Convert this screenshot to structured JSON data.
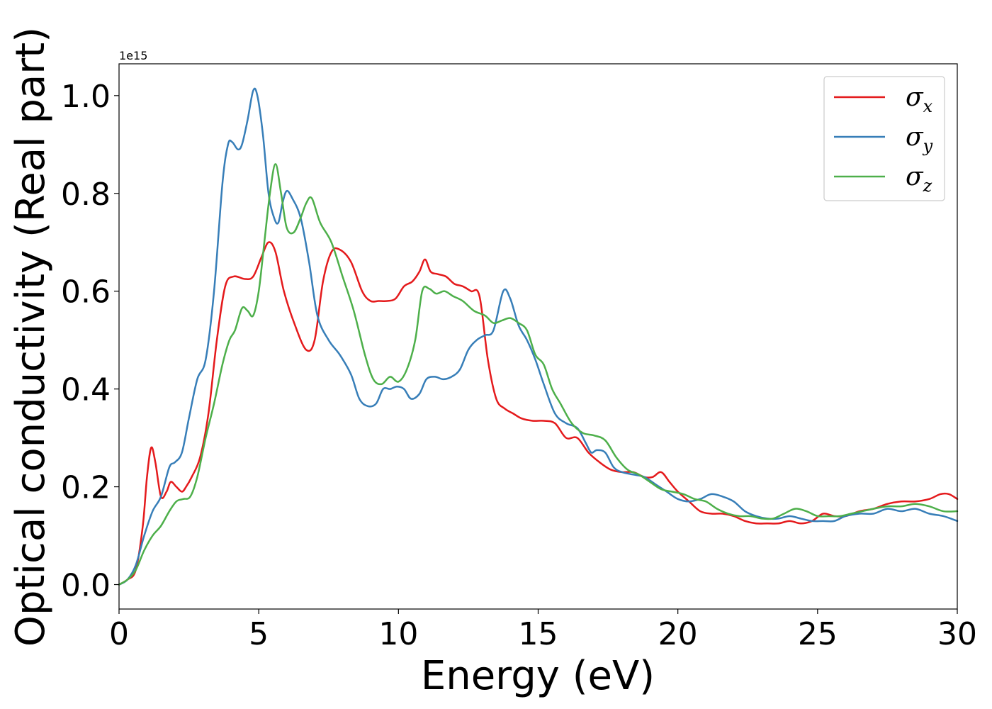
{
  "chart_data": {
    "type": "line",
    "xlabel": "Energy (eV)",
    "ylabel": "Optical conductivity (Real part)",
    "y_offset_label": "1e15",
    "xlim": [
      0,
      30
    ],
    "ylim": [
      -0.05,
      1.065
    ],
    "x_ticks": [
      0,
      5,
      10,
      15,
      20,
      25,
      30
    ],
    "x_tick_labels": [
      "0",
      "5",
      "10",
      "15",
      "20",
      "25",
      "30"
    ],
    "y_ticks": [
      0.0,
      0.2,
      0.4,
      0.6,
      0.8,
      1.0
    ],
    "y_tick_labels": [
      "0.0",
      "0.2",
      "0.4",
      "0.6",
      "0.8",
      "1.0"
    ],
    "grid": false,
    "legend_position": "top-right",
    "series": [
      {
        "name": "σx",
        "symbol": "σ",
        "subscript": "x",
        "color": "#e41a1c",
        "x": [
          0,
          0.3,
          0.6,
          0.85,
          1.0,
          1.15,
          1.3,
          1.5,
          1.7,
          1.85,
          2.05,
          2.25,
          2.4,
          2.6,
          2.9,
          3.2,
          3.5,
          3.8,
          4.1,
          4.5,
          4.8,
          5.1,
          5.35,
          5.6,
          5.9,
          6.3,
          6.7,
          7.0,
          7.3,
          7.6,
          7.9,
          8.3,
          8.7,
          9.0,
          9.3,
          9.6,
          9.9,
          10.2,
          10.5,
          10.75,
          10.95,
          11.15,
          11.4,
          11.7,
          12.0,
          12.3,
          12.6,
          12.9,
          13.2,
          13.5,
          13.8,
          14.1,
          14.4,
          14.8,
          15.2,
          15.6,
          16.0,
          16.4,
          16.8,
          17.2,
          17.6,
          18.0,
          18.4,
          18.8,
          19.1,
          19.4,
          19.7,
          20.0,
          20.4,
          20.8,
          21.2,
          21.6,
          22.0,
          22.4,
          22.8,
          23.2,
          23.6,
          24.0,
          24.4,
          24.8,
          25.2,
          25.6,
          26.0,
          26.5,
          27.0,
          27.5,
          28.0,
          28.5,
          29.0,
          29.4,
          29.7,
          30.0
        ],
        "y": [
          0.0,
          0.01,
          0.03,
          0.12,
          0.22,
          0.28,
          0.25,
          0.18,
          0.19,
          0.21,
          0.2,
          0.19,
          0.2,
          0.22,
          0.26,
          0.35,
          0.5,
          0.61,
          0.63,
          0.625,
          0.63,
          0.67,
          0.7,
          0.68,
          0.6,
          0.53,
          0.48,
          0.5,
          0.62,
          0.68,
          0.685,
          0.66,
          0.6,
          0.58,
          0.58,
          0.58,
          0.585,
          0.61,
          0.62,
          0.64,
          0.665,
          0.64,
          0.635,
          0.63,
          0.615,
          0.61,
          0.6,
          0.59,
          0.46,
          0.38,
          0.36,
          0.35,
          0.34,
          0.335,
          0.335,
          0.33,
          0.3,
          0.3,
          0.27,
          0.25,
          0.235,
          0.23,
          0.23,
          0.22,
          0.22,
          0.23,
          0.21,
          0.19,
          0.17,
          0.15,
          0.145,
          0.145,
          0.14,
          0.13,
          0.125,
          0.125,
          0.125,
          0.13,
          0.125,
          0.13,
          0.145,
          0.14,
          0.14,
          0.15,
          0.155,
          0.165,
          0.17,
          0.17,
          0.175,
          0.185,
          0.185,
          0.175
        ]
      },
      {
        "name": "σy",
        "symbol": "σ",
        "subscript": "y",
        "color": "#377eb8",
        "x": [
          0,
          0.3,
          0.6,
          0.9,
          1.2,
          1.5,
          1.8,
          2.0,
          2.25,
          2.5,
          2.8,
          3.1,
          3.4,
          3.7,
          3.9,
          4.05,
          4.25,
          4.4,
          4.6,
          4.8,
          4.95,
          5.15,
          5.35,
          5.55,
          5.7,
          5.85,
          6.0,
          6.2,
          6.5,
          6.8,
          7.1,
          7.5,
          7.9,
          8.3,
          8.6,
          8.9,
          9.2,
          9.45,
          9.7,
          9.95,
          10.2,
          10.45,
          10.75,
          11.0,
          11.3,
          11.6,
          11.9,
          12.2,
          12.5,
          12.8,
          13.1,
          13.4,
          13.75,
          14.0,
          14.3,
          14.6,
          14.9,
          15.2,
          15.6,
          16.0,
          16.4,
          16.7,
          16.9,
          17.1,
          17.4,
          17.7,
          18.0,
          18.4,
          18.8,
          19.2,
          19.6,
          20.0,
          20.4,
          20.8,
          21.2,
          21.6,
          22.0,
          22.4,
          22.8,
          23.2,
          23.6,
          24.0,
          24.4,
          24.8,
          25.2,
          25.6,
          26.0,
          26.5,
          27.0,
          27.5,
          28.0,
          28.5,
          29.0,
          29.5,
          30.0
        ],
        "y": [
          0.0,
          0.01,
          0.04,
          0.1,
          0.15,
          0.18,
          0.24,
          0.25,
          0.27,
          0.34,
          0.42,
          0.46,
          0.6,
          0.82,
          0.9,
          0.905,
          0.89,
          0.9,
          0.95,
          1.01,
          1.0,
          0.92,
          0.8,
          0.75,
          0.74,
          0.78,
          0.805,
          0.79,
          0.75,
          0.66,
          0.55,
          0.5,
          0.47,
          0.43,
          0.38,
          0.365,
          0.37,
          0.4,
          0.4,
          0.405,
          0.4,
          0.38,
          0.39,
          0.42,
          0.425,
          0.42,
          0.425,
          0.44,
          0.48,
          0.5,
          0.51,
          0.52,
          0.6,
          0.585,
          0.53,
          0.5,
          0.46,
          0.41,
          0.35,
          0.33,
          0.32,
          0.29,
          0.27,
          0.275,
          0.27,
          0.24,
          0.23,
          0.225,
          0.22,
          0.205,
          0.19,
          0.175,
          0.17,
          0.175,
          0.185,
          0.18,
          0.17,
          0.15,
          0.14,
          0.135,
          0.135,
          0.14,
          0.135,
          0.13,
          0.13,
          0.13,
          0.14,
          0.145,
          0.145,
          0.155,
          0.15,
          0.155,
          0.145,
          0.14,
          0.13
        ]
      },
      {
        "name": "σz",
        "symbol": "σ",
        "subscript": "z",
        "color": "#4daf4a",
        "x": [
          0,
          0.3,
          0.6,
          0.9,
          1.2,
          1.5,
          1.8,
          2.05,
          2.3,
          2.55,
          2.8,
          3.1,
          3.4,
          3.7,
          3.95,
          4.15,
          4.4,
          4.6,
          4.8,
          5.0,
          5.2,
          5.4,
          5.6,
          5.8,
          6.0,
          6.25,
          6.5,
          6.7,
          6.9,
          7.2,
          7.6,
          8.0,
          8.4,
          8.8,
          9.1,
          9.4,
          9.7,
          10.0,
          10.3,
          10.6,
          10.85,
          11.1,
          11.35,
          11.65,
          11.95,
          12.3,
          12.7,
          13.1,
          13.4,
          13.7,
          14.0,
          14.3,
          14.6,
          14.9,
          15.2,
          15.5,
          15.8,
          16.2,
          16.6,
          17.0,
          17.4,
          17.8,
          18.2,
          18.6,
          19.0,
          19.4,
          19.8,
          20.2,
          20.6,
          21.0,
          21.4,
          21.8,
          22.2,
          22.6,
          23.0,
          23.4,
          23.8,
          24.2,
          24.6,
          25.0,
          25.4,
          25.8,
          26.2,
          26.6,
          27.0,
          27.5,
          28.0,
          28.5,
          29.0,
          29.5,
          30.0
        ],
        "y": [
          0.0,
          0.01,
          0.03,
          0.07,
          0.1,
          0.12,
          0.15,
          0.17,
          0.175,
          0.18,
          0.22,
          0.3,
          0.37,
          0.45,
          0.5,
          0.52,
          0.565,
          0.56,
          0.55,
          0.6,
          0.7,
          0.8,
          0.86,
          0.8,
          0.73,
          0.72,
          0.75,
          0.78,
          0.79,
          0.74,
          0.7,
          0.63,
          0.56,
          0.47,
          0.42,
          0.41,
          0.425,
          0.415,
          0.44,
          0.5,
          0.6,
          0.605,
          0.595,
          0.6,
          0.59,
          0.58,
          0.56,
          0.55,
          0.535,
          0.54,
          0.545,
          0.535,
          0.52,
          0.47,
          0.45,
          0.4,
          0.37,
          0.33,
          0.31,
          0.305,
          0.295,
          0.26,
          0.235,
          0.225,
          0.21,
          0.195,
          0.19,
          0.185,
          0.175,
          0.17,
          0.155,
          0.145,
          0.14,
          0.14,
          0.135,
          0.135,
          0.145,
          0.155,
          0.15,
          0.14,
          0.14,
          0.14,
          0.145,
          0.15,
          0.155,
          0.16,
          0.16,
          0.165,
          0.16,
          0.15,
          0.15
        ]
      }
    ]
  }
}
